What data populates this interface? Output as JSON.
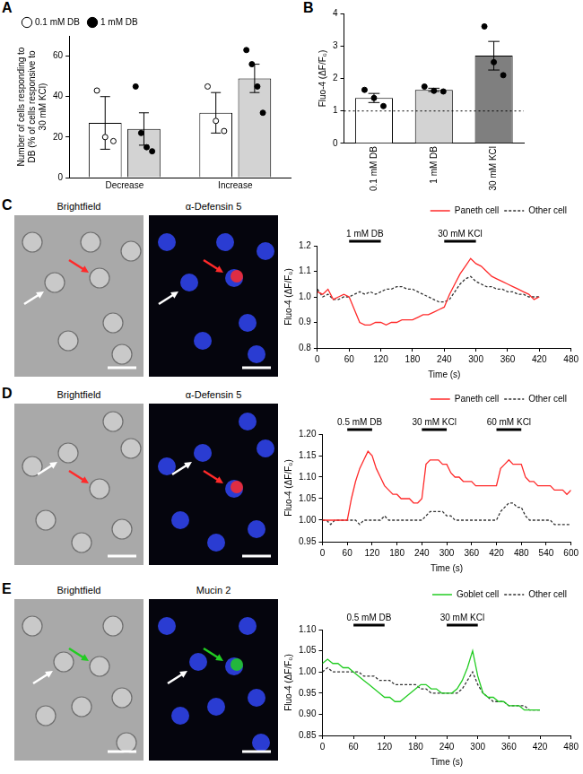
{
  "panel_labels": [
    "A",
    "B",
    "C",
    "D",
    "E"
  ],
  "images": [
    [
      "Brightfield",
      "α-Defensin 5"
    ],
    [
      "Brightfield",
      "α-Defensin 5"
    ],
    [
      "Brightfield",
      "Mucin 2"
    ]
  ],
  "chart_data": [
    {
      "type": "bar",
      "y_label": "Number of cells responding to DB (% of cells responsive to 30 mM KCl)",
      "categories": [
        "Decrease",
        "Increase"
      ],
      "series": [
        {
          "name": "0.1 mM DB",
          "color": "#ffffff",
          "marker": "open_circle",
          "values": [
            27,
            32
          ],
          "errors": [
            13,
            10
          ],
          "points": [
            [
              43,
              20,
              18
            ],
            [
              45,
              28,
              23
            ]
          ]
        },
        {
          "name": "1 mM DB",
          "color": "#d3d3d3",
          "marker": "filled_circle",
          "values": [
            24,
            49
          ],
          "errors": [
            8,
            7
          ],
          "points": [
            [
              45,
              22,
              15,
              13
            ],
            [
              63,
              56,
              45,
              32
            ]
          ]
        }
      ],
      "ylim": [
        0,
        70
      ],
      "yticks": [
        0,
        20,
        40,
        60
      ],
      "grid": false,
      "legend": "upper left"
    },
    {
      "type": "bar",
      "y_label": "Fluo-4 (ΔF/F₀)",
      "categories": [
        "0.1 mM DB",
        "1 mM DB",
        "30 mM KCl"
      ],
      "values": [
        1.4,
        1.65,
        2.7
      ],
      "errors": [
        0.14,
        0.05,
        0.44
      ],
      "points": [
        [
          1.65,
          1.4,
          1.15
        ],
        [
          1.75,
          1.62,
          1.6
        ],
        [
          3.6,
          2.5,
          2.1
        ]
      ],
      "colors": [
        "#ffffff",
        "#d3d3d3",
        "#7f7f7f"
      ],
      "marker": "filled_circle",
      "reference_line": 1,
      "ylim": [
        0,
        4
      ],
      "yticks": [
        0,
        1,
        2,
        3,
        4
      ],
      "grid": false
    },
    {
      "type": "line",
      "x_label": "Time (s)",
      "y_label": "Fluo-4 (ΔF/F₀)",
      "x": [
        0,
        10,
        20,
        30,
        40,
        50,
        60,
        70,
        80,
        90,
        100,
        110,
        120,
        130,
        140,
        150,
        160,
        170,
        180,
        190,
        200,
        210,
        220,
        230,
        240,
        250,
        260,
        270,
        280,
        290,
        300,
        310,
        320,
        330,
        340,
        350,
        360,
        370,
        380,
        390,
        400,
        410,
        420
      ],
      "series": [
        {
          "name": "Paneth cell",
          "color": "#ff2a2a",
          "line_style": "solid",
          "values": [
            1.02,
            1.01,
            1.03,
            0.99,
            1.0,
            1.01,
            1.0,
            0.95,
            0.9,
            0.89,
            0.89,
            0.9,
            0.9,
            0.89,
            0.9,
            0.9,
            0.91,
            0.91,
            0.91,
            0.92,
            0.93,
            0.93,
            0.94,
            0.95,
            0.96,
            1.01,
            1.05,
            1.09,
            1.12,
            1.15,
            1.13,
            1.12,
            1.1,
            1.08,
            1.07,
            1.06,
            1.05,
            1.04,
            1.03,
            1.02,
            1.01,
            0.99,
            1.0
          ]
        },
        {
          "name": "Other cell",
          "color": "#333333",
          "line_style": "dashed",
          "values": [
            1.03,
            1.0,
            1.01,
            0.99,
            0.99,
            1.0,
            1.0,
            1.01,
            1.02,
            1.01,
            1.02,
            1.01,
            1.02,
            1.03,
            1.03,
            1.04,
            1.04,
            1.03,
            1.03,
            1.02,
            1.01,
            1.0,
            0.99,
            0.98,
            0.98,
            0.99,
            1.02,
            1.05,
            1.07,
            1.08,
            1.06,
            1.05,
            1.04,
            1.04,
            1.03,
            1.03,
            1.02,
            1.02,
            1.01,
            1.01,
            1.0,
            1.0,
            1.0
          ]
        }
      ],
      "annotations": [
        {
          "label": "1 mM DB",
          "start": 60,
          "end": 120
        },
        {
          "label": "30 mM KCl",
          "start": 240,
          "end": 300
        }
      ],
      "xlim": [
        0,
        480
      ],
      "xticks": [
        0,
        60,
        120,
        180,
        240,
        300,
        360,
        420,
        480
      ],
      "ylim": [
        0.8,
        1.2
      ],
      "yticks": [
        0.8,
        0.9,
        {
          "value": 1,
          "label": "1.0"
        },
        1.1,
        1.2
      ],
      "grid": false,
      "legend": "upper right"
    },
    {
      "type": "line",
      "x_label": "Time (s)",
      "y_label": "Fluo-4 (ΔF/F₀)",
      "x": [
        0,
        10,
        20,
        30,
        40,
        50,
        60,
        70,
        80,
        90,
        100,
        110,
        120,
        130,
        140,
        150,
        160,
        170,
        180,
        190,
        200,
        210,
        220,
        230,
        240,
        250,
        260,
        270,
        280,
        290,
        300,
        310,
        320,
        330,
        340,
        350,
        360,
        370,
        380,
        390,
        400,
        410,
        420,
        430,
        440,
        450,
        460,
        470,
        480,
        490,
        500,
        510,
        520,
        530,
        540,
        550,
        560,
        570,
        580,
        590,
        600
      ],
      "series": [
        {
          "name": "Paneth cell",
          "color": "#ff2a2a",
          "line_style": "solid",
          "values": [
            1.0,
            1.0,
            1.0,
            1.0,
            1.0,
            1.0,
            1.0,
            1.05,
            1.09,
            1.12,
            1.14,
            1.16,
            1.15,
            1.12,
            1.1,
            1.08,
            1.07,
            1.06,
            1.06,
            1.05,
            1.05,
            1.05,
            1.04,
            1.04,
            1.05,
            1.13,
            1.14,
            1.14,
            1.14,
            1.13,
            1.13,
            1.11,
            1.1,
            1.1,
            1.09,
            1.09,
            1.09,
            1.08,
            1.08,
            1.08,
            1.08,
            1.08,
            1.08,
            1.12,
            1.13,
            1.14,
            1.13,
            1.13,
            1.13,
            1.1,
            1.09,
            1.09,
            1.08,
            1.08,
            1.08,
            1.08,
            1.07,
            1.07,
            1.07,
            1.06,
            1.07
          ]
        },
        {
          "name": "Other cell",
          "color": "#333333",
          "line_style": "dashed",
          "values": [
            1.0,
            1.0,
            0.99,
            1.0,
            1.0,
            1.0,
            1.0,
            1.0,
            1.0,
            0.99,
            1.0,
            1.0,
            1.0,
            1.0,
            1.0,
            1.01,
            1.0,
            1.0,
            1.0,
            1.0,
            1.0,
            1.0,
            1.0,
            1.0,
            1.0,
            1.01,
            1.02,
            1.02,
            1.02,
            1.02,
            1.01,
            1.01,
            1.0,
            1.0,
            1.0,
            1.0,
            1.0,
            1.0,
            1.0,
            1.0,
            1.0,
            1.0,
            1.0,
            1.02,
            1.03,
            1.04,
            1.04,
            1.03,
            1.03,
            1.01,
            1.0,
            1.0,
            1.0,
            1.0,
            1.0,
            1.0,
            0.99,
            0.99,
            0.99,
            0.99,
            0.99
          ]
        }
      ],
      "annotations": [
        {
          "label": "0.5 mM DB",
          "start": 60,
          "end": 120
        },
        {
          "label": "30 mM KCl",
          "start": 240,
          "end": 300
        },
        {
          "label": "60 mM KCl",
          "start": 420,
          "end": 480
        }
      ],
      "xlim": [
        0,
        600
      ],
      "xticks": [
        0,
        60,
        120,
        180,
        240,
        300,
        360,
        420,
        480,
        540,
        600
      ],
      "ylim": [
        0.95,
        1.2
      ],
      "yticks": [
        0.95,
        {
          "value": 1,
          "label": "1.00"
        },
        1.05,
        {
          "value": 1.1,
          "label": "1.10"
        },
        1.15,
        {
          "value": 1.2,
          "label": "1.20"
        }
      ],
      "grid": false,
      "legend": "upper right"
    },
    {
      "type": "line",
      "x_label": "Time (s)",
      "y_label": "Fluo-4 (ΔF/F₀)",
      "x": [
        0,
        10,
        20,
        30,
        40,
        50,
        60,
        70,
        80,
        90,
        100,
        110,
        120,
        130,
        140,
        150,
        160,
        170,
        180,
        190,
        200,
        210,
        220,
        230,
        240,
        250,
        260,
        270,
        280,
        290,
        300,
        310,
        320,
        330,
        340,
        350,
        360,
        370,
        380,
        390,
        400,
        410,
        420
      ],
      "series": [
        {
          "name": "Goblet cell",
          "color": "#22cc22",
          "line_style": "solid",
          "values": [
            1.02,
            1.03,
            1.02,
            1.02,
            1.01,
            1.01,
            1.0,
            0.99,
            0.98,
            0.97,
            0.96,
            0.95,
            0.94,
            0.94,
            0.93,
            0.93,
            0.94,
            0.95,
            0.96,
            0.97,
            0.97,
            0.96,
            0.96,
            0.95,
            0.95,
            0.95,
            0.96,
            0.98,
            1.01,
            1.05,
            0.99,
            0.95,
            0.94,
            0.94,
            0.93,
            0.93,
            0.92,
            0.92,
            0.92,
            0.91,
            0.91,
            0.91,
            0.91
          ]
        },
        {
          "name": "Other cell",
          "color": "#333333",
          "line_style": "dashed",
          "values": [
            1.0,
            1.01,
            1.0,
            1.0,
            1.0,
            1.0,
            1.0,
            1.0,
            0.99,
            0.99,
            0.99,
            0.98,
            0.98,
            0.98,
            0.97,
            0.97,
            0.97,
            0.97,
            0.97,
            0.96,
            0.96,
            0.95,
            0.95,
            0.95,
            0.95,
            0.95,
            0.95,
            0.96,
            0.98,
            1.0,
            0.97,
            0.95,
            0.94,
            0.93,
            0.93,
            0.93,
            0.92,
            0.92,
            0.92,
            0.92,
            0.91,
            0.91,
            0.91
          ]
        }
      ],
      "annotations": [
        {
          "label": "0.5 mM DB",
          "start": 60,
          "end": 120
        },
        {
          "label": "30 mM KCl",
          "start": 240,
          "end": 300
        }
      ],
      "xlim": [
        0,
        480
      ],
      "xticks": [
        0,
        60,
        120,
        180,
        240,
        300,
        360,
        420,
        480
      ],
      "ylim": [
        0.85,
        1.1
      ],
      "yticks": [
        0.85,
        {
          "value": 0.9,
          "label": "0.90"
        },
        0.95,
        {
          "value": 1,
          "label": "1.00"
        },
        1.05,
        {
          "value": 1.1,
          "label": "1.10"
        }
      ],
      "grid": false,
      "legend": "upper right"
    }
  ]
}
